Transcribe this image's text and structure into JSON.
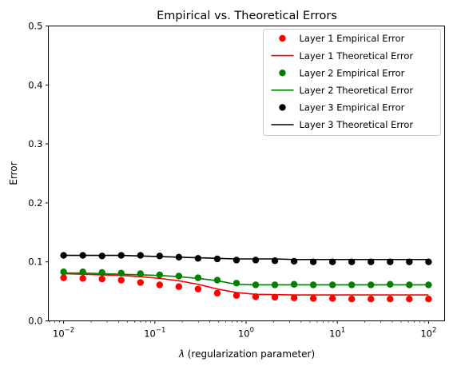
{
  "chart_data": {
    "type": "line",
    "title": "Empirical vs. Theoretical Errors",
    "xlabel": "λ (regularization parameter)",
    "xlabel_symbol": "λ",
    "xlabel_rest": " (regularization parameter)",
    "ylabel": "Error",
    "xscale": "log",
    "xlim": [
      0.0068,
      150
    ],
    "ylim": [
      0,
      0.5
    ],
    "grid": false,
    "legend_position": "top-right",
    "xticks": [
      {
        "value": 0.01,
        "base": "10",
        "exp": "−2"
      },
      {
        "value": 0.1,
        "base": "10",
        "exp": "−1"
      },
      {
        "value": 1,
        "base": "10",
        "exp": "0"
      },
      {
        "value": 10,
        "base": "10",
        "exp": "1"
      },
      {
        "value": 100,
        "base": "10",
        "exp": "2"
      }
    ],
    "yticks": [
      {
        "value": 0.0,
        "label": "0.0"
      },
      {
        "value": 0.1,
        "label": "0.1"
      },
      {
        "value": 0.2,
        "label": "0.2"
      },
      {
        "value": 0.3,
        "label": "0.3"
      },
      {
        "value": 0.4,
        "label": "0.4"
      },
      {
        "value": 0.5,
        "label": "0.5"
      }
    ],
    "x": [
      0.01,
      0.01624,
      0.02637,
      0.04281,
      0.06952,
      0.1129,
      0.1833,
      0.2976,
      0.4833,
      0.7848,
      1.274,
      2.069,
      3.36,
      5.456,
      8.859,
      14.38,
      23.36,
      37.93,
      61.58,
      100
    ],
    "series": [
      {
        "name": "Layer 1 Empirical Error",
        "kind": "markers",
        "color": "#ff0000",
        "values": [
          0.073,
          0.072,
          0.071,
          0.069,
          0.065,
          0.061,
          0.058,
          0.054,
          0.047,
          0.043,
          0.041,
          0.04,
          0.039,
          0.038,
          0.038,
          0.037,
          0.037,
          0.037,
          0.037,
          0.037
        ]
      },
      {
        "name": "Layer 1 Theoretical Error",
        "kind": "line",
        "color": "#ff0000",
        "values": [
          0.08,
          0.079,
          0.078,
          0.077,
          0.075,
          0.072,
          0.068,
          0.062,
          0.054,
          0.048,
          0.045,
          0.0445,
          0.044,
          0.044,
          0.044,
          0.044,
          0.044,
          0.044,
          0.044,
          0.044
        ]
      },
      {
        "name": "Layer 2 Empirical Error",
        "kind": "markers",
        "color": "#008000",
        "values": [
          0.083,
          0.083,
          0.082,
          0.081,
          0.08,
          0.078,
          0.076,
          0.073,
          0.069,
          0.064,
          0.061,
          0.061,
          0.062,
          0.061,
          0.061,
          0.061,
          0.061,
          0.062,
          0.061,
          0.061
        ]
      },
      {
        "name": "Layer 2 Theoretical Error",
        "kind": "line",
        "color": "#008000",
        "values": [
          0.081,
          0.081,
          0.08,
          0.079,
          0.078,
          0.077,
          0.075,
          0.072,
          0.068,
          0.062,
          0.061,
          0.061,
          0.061,
          0.061,
          0.061,
          0.061,
          0.061,
          0.061,
          0.061,
          0.061
        ]
      },
      {
        "name": "Layer 3 Empirical Error",
        "kind": "markers",
        "color": "#000000",
        "values": [
          0.111,
          0.111,
          0.11,
          0.111,
          0.111,
          0.11,
          0.108,
          0.106,
          0.105,
          0.103,
          0.103,
          0.102,
          0.101,
          0.1,
          0.1,
          0.1,
          0.1,
          0.1,
          0.1,
          0.1
        ]
      },
      {
        "name": "Layer 3 Theoretical Error",
        "kind": "line",
        "color": "#000000",
        "values": [
          0.111,
          0.111,
          0.111,
          0.111,
          0.11,
          0.109,
          0.108,
          0.107,
          0.106,
          0.105,
          0.105,
          0.105,
          0.104,
          0.104,
          0.104,
          0.104,
          0.104,
          0.104,
          0.104,
          0.104
        ]
      }
    ]
  }
}
